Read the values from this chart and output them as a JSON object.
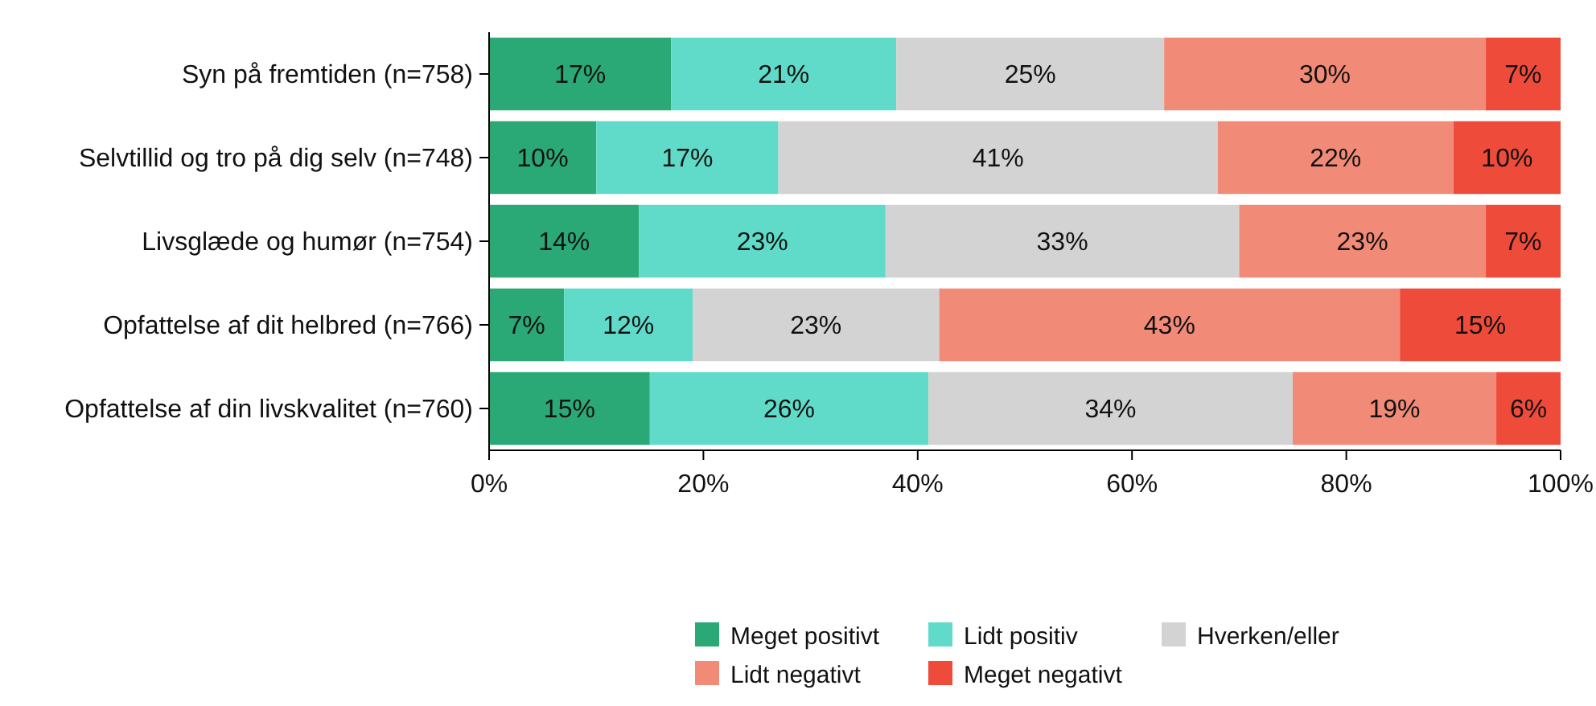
{
  "chart_data": {
    "type": "bar",
    "orientation": "horizontal",
    "stacked": true,
    "categories": [
      "Syn på fremtiden (n=758)",
      "Selvtillid og tro på dig selv (n=748)",
      "Livsglæde og humør (n=754)",
      "Opfattelse af dit helbred (n=766)",
      "Opfattelse af din livskvalitet (n=760)"
    ],
    "series": [
      {
        "name": "Meget positivt",
        "color": "#2aa876",
        "values": [
          17,
          10,
          14,
          7,
          15
        ],
        "value_labels": [
          "17%",
          "10%",
          "14%",
          "7%",
          "15%"
        ]
      },
      {
        "name": "Lidt positiv",
        "color": "#60dbc9",
        "values": [
          21,
          17,
          23,
          12,
          26
        ],
        "value_labels": [
          "21%",
          "17%",
          "23%",
          "12%",
          "26%"
        ]
      },
      {
        "name": "Hverken/eller",
        "color": "#d3d3d3",
        "values": [
          25,
          41,
          33,
          23,
          34
        ],
        "value_labels": [
          "25%",
          "41%",
          "33%",
          "23%",
          "34%"
        ]
      },
      {
        "name": "Lidt negativt",
        "color": "#f28a78",
        "values": [
          30,
          22,
          23,
          43,
          19
        ],
        "value_labels": [
          "30%",
          "22%",
          "23%",
          "43%",
          "19%"
        ]
      },
      {
        "name": "Meget negativt",
        "color": "#ee4b3a",
        "values": [
          7,
          10,
          7,
          15,
          6
        ],
        "value_labels": [
          "7%",
          "10%",
          "7%",
          "15%",
          "6%"
        ]
      }
    ],
    "xlim": [
      0,
      100
    ],
    "xticks": [
      {
        "value": 0,
        "label": "0%"
      },
      {
        "value": 20,
        "label": "20%"
      },
      {
        "value": 40,
        "label": "40%"
      },
      {
        "value": 60,
        "label": "60%"
      },
      {
        "value": 80,
        "label": "80%"
      },
      {
        "value": 100,
        "label": "100%"
      }
    ],
    "grid": false,
    "legend": "bottom"
  }
}
